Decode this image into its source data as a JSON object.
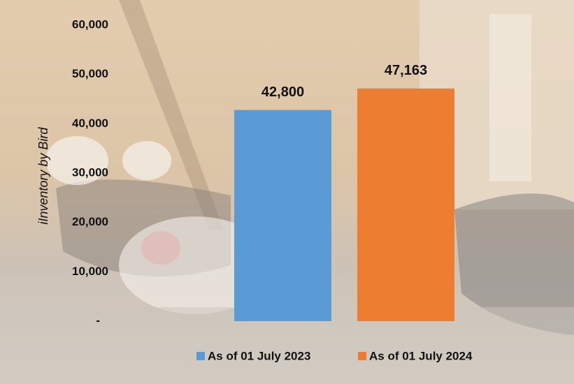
{
  "chart_data": {
    "type": "bar",
    "categories": [
      null
    ],
    "series": [
      {
        "name": "As of 01 July 2023",
        "color": "#5b9bd5",
        "values": [
          42800
        ],
        "value_labels": [
          "42,800"
        ]
      },
      {
        "name": "As of 01 July 2024",
        "color": "#ed7d31",
        "values": [
          47163
        ],
        "value_labels": [
          "47,163"
        ]
      }
    ],
    "y_axis_label": "iInventory by Bird",
    "ylim": [
      0,
      60000
    ],
    "yticks": [
      {
        "value": 0,
        "label": "-"
      },
      {
        "value": 10000,
        "label": "10,000"
      },
      {
        "value": 20000,
        "label": "20,000"
      },
      {
        "value": 30000,
        "label": "30,000"
      },
      {
        "value": 40000,
        "label": "40,000"
      },
      {
        "value": 50000,
        "label": "50,000"
      },
      {
        "value": 60000,
        "label": "60,000"
      }
    ],
    "legend": "bottom"
  }
}
